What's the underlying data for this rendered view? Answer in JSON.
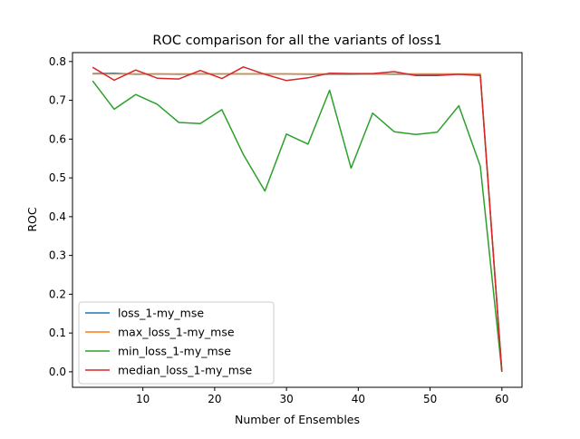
{
  "chart_data": {
    "type": "line",
    "title": "ROC comparison for all the variants of loss1",
    "xlabel": "Number of Ensembles",
    "ylabel": "ROC",
    "xlim": [
      0.2,
      62.8
    ],
    "ylim": [
      -0.04,
      0.823
    ],
    "xticks": [
      10,
      20,
      30,
      40,
      50,
      60
    ],
    "xtick_labels": [
      "10",
      "20",
      "30",
      "40",
      "50",
      "60"
    ],
    "yticks": [
      0.0,
      0.1,
      0.2,
      0.3,
      0.4,
      0.5,
      0.6,
      0.7,
      0.8
    ],
    "ytick_labels": [
      "0.0",
      "0.1",
      "0.2",
      "0.3",
      "0.4",
      "0.5",
      "0.6",
      "0.7",
      "0.8"
    ],
    "grid": false,
    "legend_position": "lower-left",
    "x": [
      3,
      6,
      9,
      12,
      15,
      18,
      21,
      24,
      27,
      30,
      33,
      36,
      39,
      42,
      45,
      48,
      51,
      54,
      57,
      60
    ],
    "series": [
      {
        "name": "loss_1-my_mse",
        "color": "#1f77b4",
        "values": [
          0.769,
          0.77,
          0.767,
          0.768,
          0.767,
          0.768,
          0.768,
          0.768,
          0.768,
          0.768,
          0.767,
          0.767,
          0.767,
          0.768,
          0.767,
          0.767,
          0.767,
          0.767,
          0.766,
          0.0
        ]
      },
      {
        "name": "max_loss_1-my_mse",
        "color": "#ff7f0e",
        "values": [
          0.768,
          0.768,
          0.768,
          0.768,
          0.768,
          0.768,
          0.768,
          0.768,
          0.768,
          0.768,
          0.768,
          0.768,
          0.768,
          0.768,
          0.768,
          0.768,
          0.768,
          0.768,
          0.768,
          0.0
        ]
      },
      {
        "name": "min_loss_1-my_mse",
        "color": "#2ca02c",
        "values": [
          0.75,
          0.677,
          0.715,
          0.69,
          0.643,
          0.64,
          0.676,
          0.56,
          0.466,
          0.613,
          0.587,
          0.726,
          0.525,
          0.667,
          0.619,
          0.612,
          0.618,
          0.686,
          0.53,
          0.0
        ]
      },
      {
        "name": "median_loss_1-my_mse",
        "color": "#d62728",
        "values": [
          0.785,
          0.752,
          0.778,
          0.757,
          0.755,
          0.777,
          0.756,
          0.786,
          0.767,
          0.751,
          0.758,
          0.77,
          0.769,
          0.769,
          0.774,
          0.764,
          0.764,
          0.767,
          0.764,
          0.0
        ]
      }
    ]
  }
}
